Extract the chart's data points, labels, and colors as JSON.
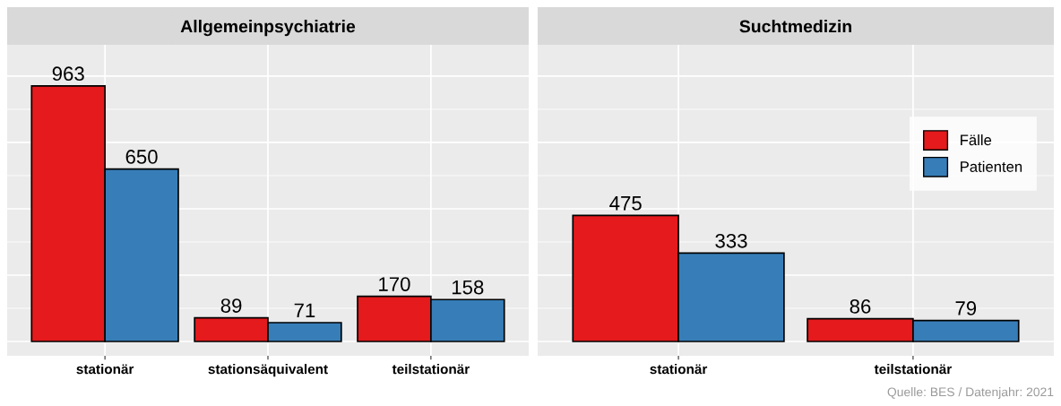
{
  "chart_data": [
    {
      "type": "bar",
      "title": "Allgemeinpsychiatrie",
      "categories": [
        "stationär",
        "stationsäquivalent",
        "teilstationär"
      ],
      "series": [
        {
          "color": "#e41a1c",
          "values": [
            963,
            89,
            170
          ]
        },
        {
          "color": "#377eb8",
          "values": [
            650,
            71,
            158
          ]
        }
      ],
      "data_labels": true,
      "grid": true,
      "tick_labels": "x",
      "legend": false,
      "ylim": [
        -54,
        1118
      ],
      "yticks": [
        {
          "value": 0,
          "label": null
        },
        {
          "value": 125,
          "label": null
        },
        {
          "value": 250,
          "label": null
        },
        {
          "value": 375,
          "label": null
        },
        {
          "value": 500,
          "label": null
        },
        {
          "value": 625,
          "label": null
        },
        {
          "value": 750,
          "label": null
        },
        {
          "value": 875,
          "label": null
        },
        {
          "value": 1000,
          "label": null
        }
      ]
    },
    {
      "type": "bar",
      "title": "Suchtmedizin",
      "categories": [
        "stationär",
        "teilstationär"
      ],
      "series": [
        {
          "name": "Fälle",
          "color": "#e41a1c",
          "values": [
            475,
            86
          ]
        },
        {
          "name": "Patienten",
          "color": "#377eb8",
          "values": [
            333,
            79
          ]
        }
      ],
      "data_labels": true,
      "grid": true,
      "tick_labels": "x",
      "legend": "right",
      "ylim": [
        -54,
        1118
      ],
      "yticks": [
        {
          "value": 0,
          "label": null
        },
        {
          "value": 125,
          "label": null
        },
        {
          "value": 250,
          "label": null
        },
        {
          "value": 375,
          "label": null
        },
        {
          "value": 500,
          "label": null
        },
        {
          "value": 625,
          "label": null
        },
        {
          "value": 750,
          "label": null
        },
        {
          "value": 875,
          "label": null
        },
        {
          "value": 1000,
          "label": null
        }
      ],
      "annotations": [
        "Quelle: BES / Datenjahr: 2021"
      ]
    }
  ]
}
